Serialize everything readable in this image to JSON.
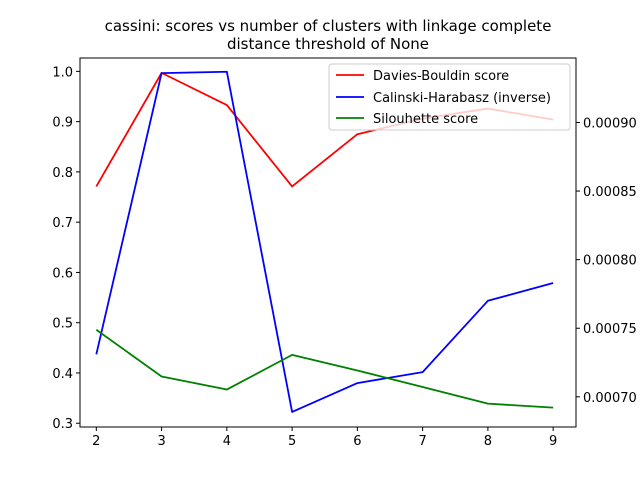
{
  "chart_data": {
    "type": "line",
    "title": "cassini: scores vs number of clusters with linkage complete",
    "subtitle": "distance threshold of None",
    "xlabel": "",
    "ylabel": "",
    "x": [
      2,
      3,
      4,
      5,
      6,
      7,
      8,
      9
    ],
    "xlim": [
      1.75,
      9.35
    ],
    "ylim_left": [
      0.2925,
      1.0266
    ],
    "ylim_right": [
      0.000678,
      0.000947
    ],
    "left_ticks": [
      "0.3",
      "0.4",
      "0.5",
      "0.6",
      "0.7",
      "0.8",
      "0.9",
      "1.0"
    ],
    "right_ticks": [
      "0.00070",
      "0.00075",
      "0.00080",
      "0.00085",
      "0.00090"
    ],
    "legend_position": "top-right",
    "grid": false,
    "series": [
      {
        "name": "Davies-Bouldin score",
        "axis": "left",
        "color": "#ff0000",
        "values": [
          0.771,
          0.997,
          0.933,
          0.771,
          0.875,
          0.906,
          0.926,
          0.904
        ]
      },
      {
        "name": "Calinski-Harabasz (inverse)",
        "axis": "right",
        "color": "#0000ff",
        "values": [
          0.000731,
          0.000936,
          0.000937,
          0.000689,
          0.00071,
          0.000718,
          0.00077,
          0.000783
        ]
      },
      {
        "name": "Silouhette score",
        "axis": "left",
        "color": "#008000",
        "values": [
          0.486,
          0.393,
          0.367,
          0.436,
          0.405,
          0.372,
          0.339,
          0.331
        ]
      }
    ]
  }
}
